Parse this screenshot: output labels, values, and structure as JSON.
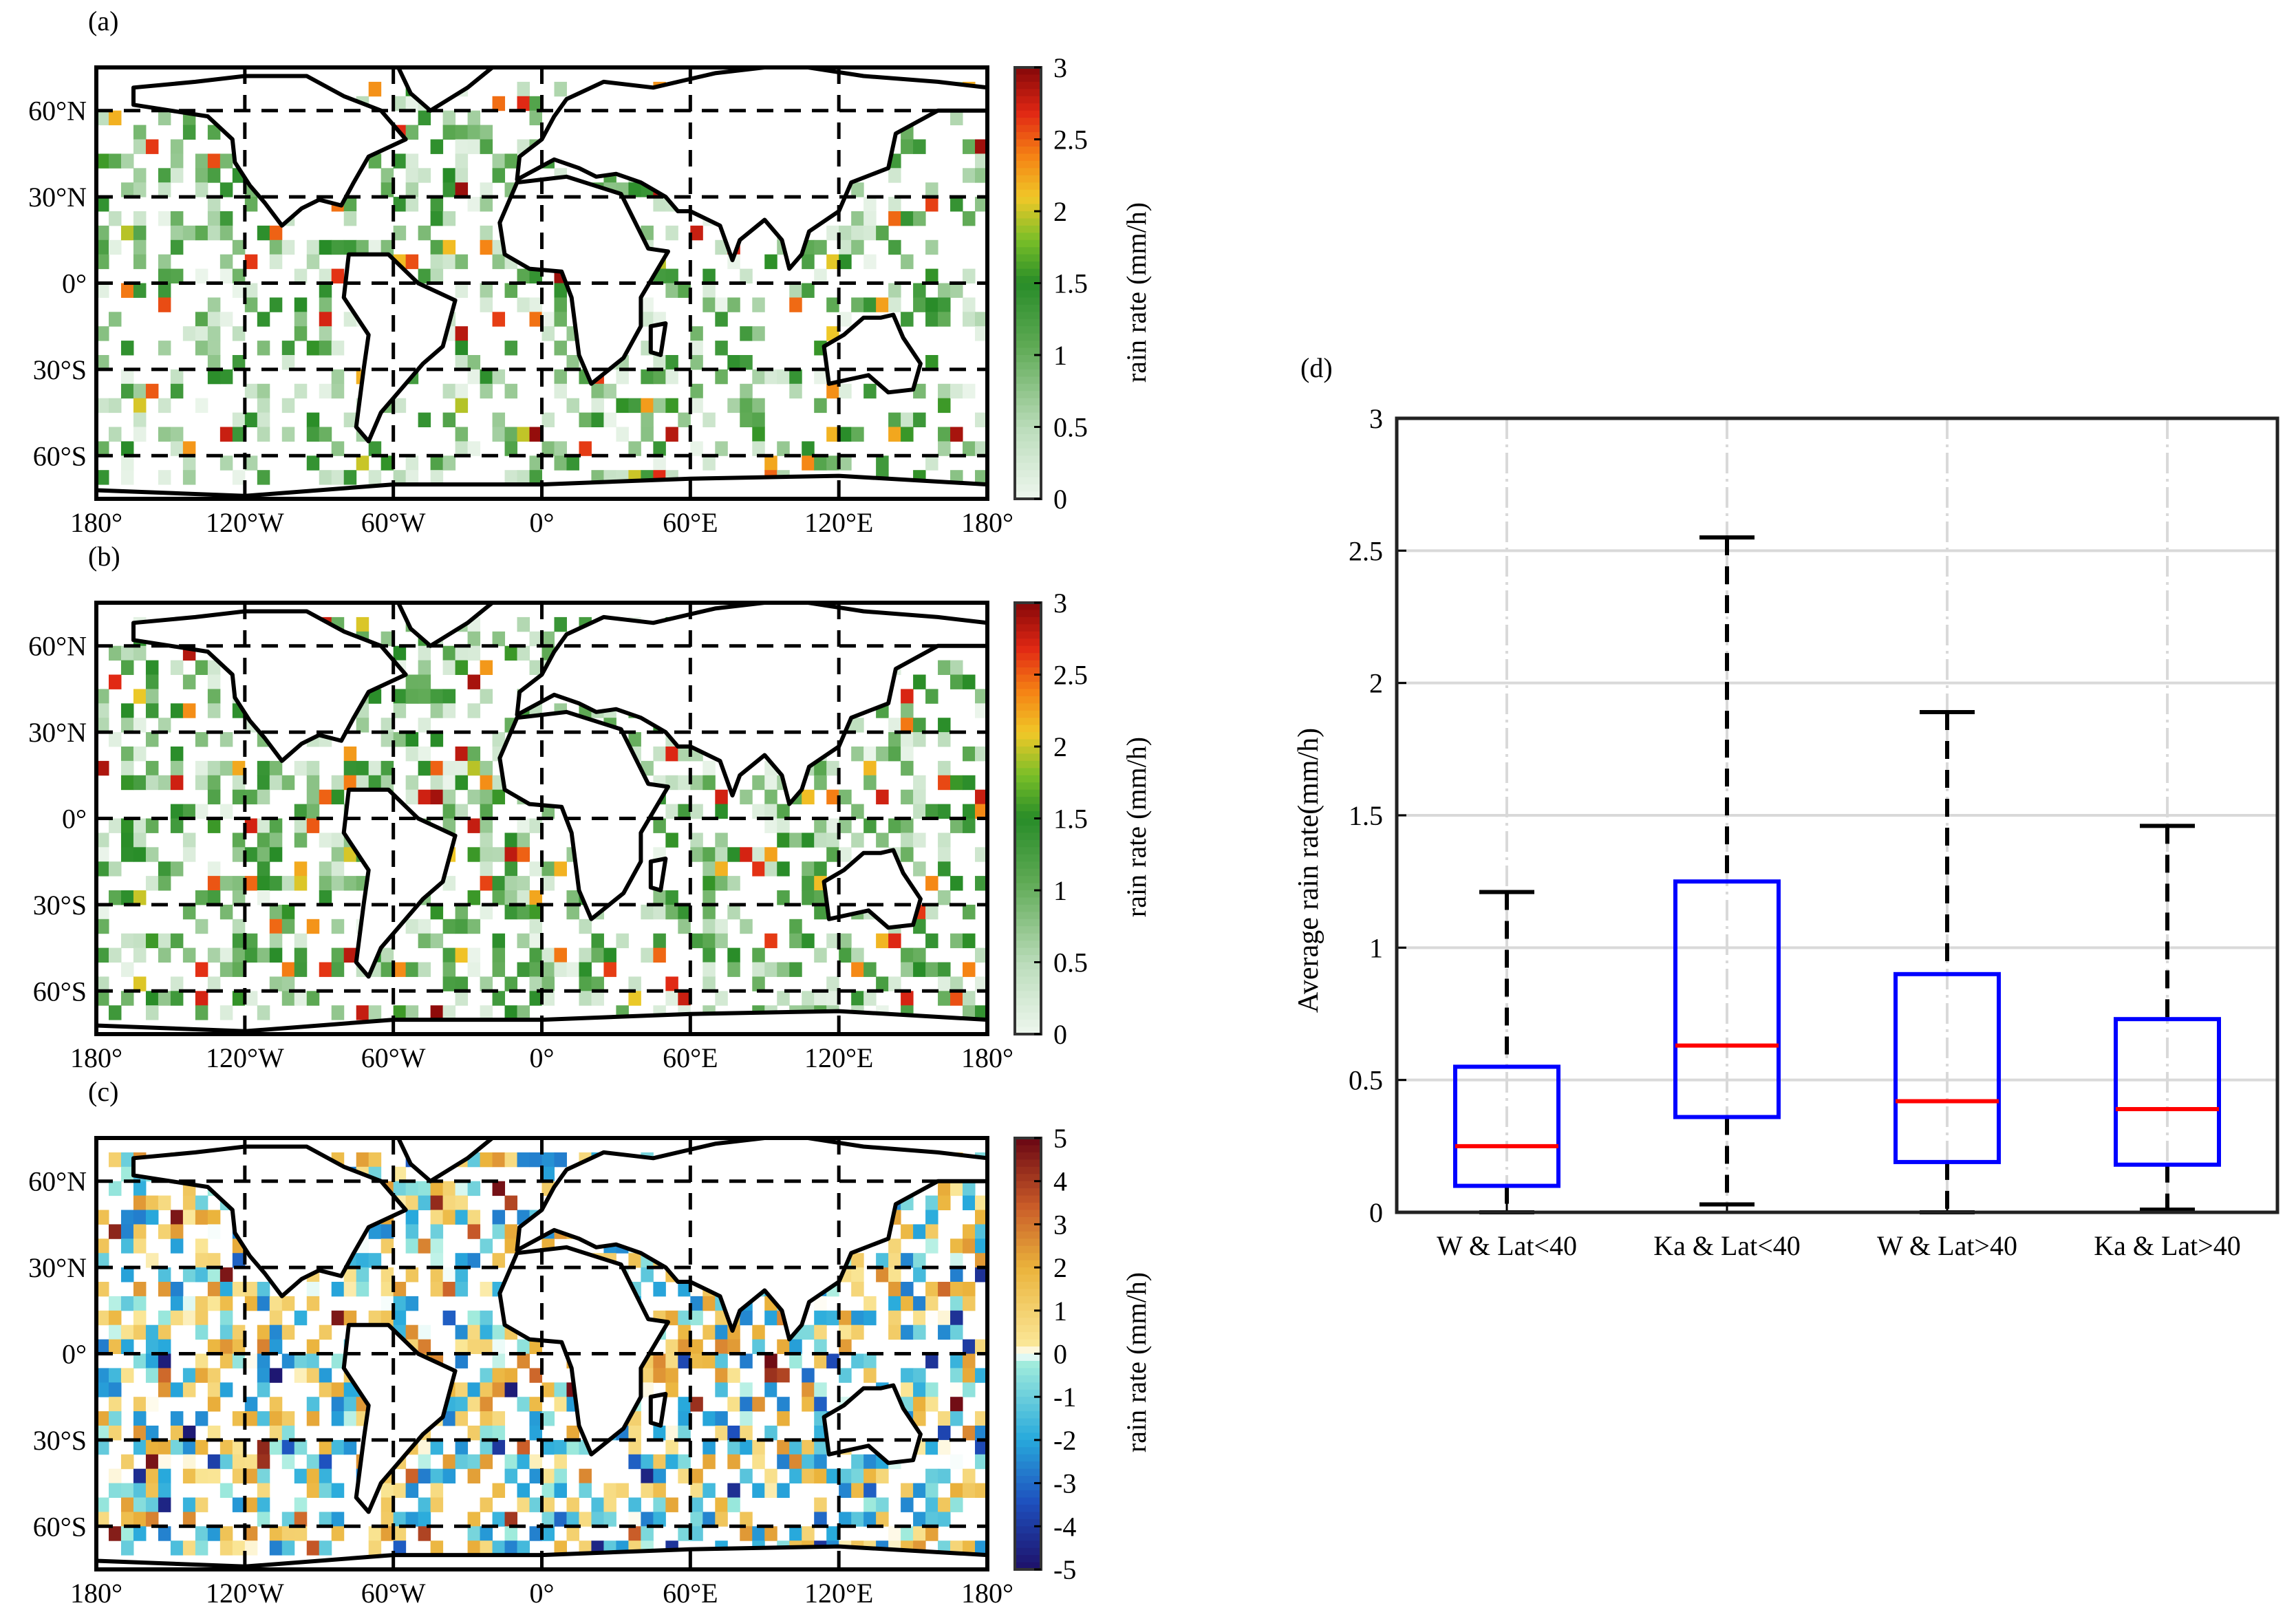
{
  "panels": {
    "a": {
      "label": "(a)",
      "colorbar": {
        "label": "rain rate (mm/h)",
        "ticks": [
          "3",
          "2.5",
          "2",
          "1.5",
          "1",
          "0.5",
          "0"
        ],
        "colormap": "green-red"
      }
    },
    "b": {
      "label": "(b)",
      "colorbar": {
        "label": "rain rate (mm/h)",
        "ticks": [
          "3",
          "2.5",
          "2",
          "1.5",
          "1",
          "0.5",
          "0"
        ],
        "colormap": "green-red"
      }
    },
    "c": {
      "label": "(c)",
      "colorbar": {
        "label": "rain rate (mm/h)",
        "ticks": [
          "5",
          "4",
          "3",
          "2",
          "1",
          "0",
          "-1",
          "-2",
          "-3",
          "-4",
          "-5"
        ],
        "colormap": "diverging"
      }
    },
    "d": {
      "label": "(d)"
    }
  },
  "map_axes": {
    "lat_ticks": [
      "60°N",
      "30°N",
      "0°",
      "30°S",
      "60°S"
    ],
    "lon_ticks": [
      "180°",
      "120°W",
      "60°W",
      "0°",
      "60°E",
      "120°E",
      "180°"
    ]
  },
  "chart_data": [
    {
      "type": "heatmap",
      "panel": "a",
      "title": "",
      "xlabel": "",
      "ylabel": "",
      "colorbar_label": "rain rate (mm/h)",
      "clim": [
        0,
        3
      ],
      "extent": {
        "lon": [
          -180,
          180
        ],
        "lat": [
          -75,
          75
        ]
      },
      "grid": "dashed 60°/30°"
    },
    {
      "type": "heatmap",
      "panel": "b",
      "title": "",
      "xlabel": "",
      "ylabel": "",
      "colorbar_label": "rain rate (mm/h)",
      "clim": [
        0,
        3
      ],
      "extent": {
        "lon": [
          -180,
          180
        ],
        "lat": [
          -75,
          75
        ]
      },
      "grid": "dashed 60°/30°"
    },
    {
      "type": "heatmap",
      "panel": "c",
      "title": "",
      "xlabel": "",
      "ylabel": "",
      "colorbar_label": "rain rate (mm/h)",
      "clim": [
        -5,
        5
      ],
      "extent": {
        "lon": [
          -180,
          180
        ],
        "lat": [
          -75,
          75
        ]
      },
      "grid": "dashed 60°/30°"
    },
    {
      "type": "box",
      "panel": "d",
      "title": "",
      "xlabel": "",
      "ylabel": "Average rain rate(mm/h)",
      "ylim": [
        0,
        3
      ],
      "yticks": [
        "0",
        "0.5",
        "1",
        "1.5",
        "2",
        "2.5",
        "3"
      ],
      "categories": [
        "W & Lat<40",
        "Ka & Lat<40",
        "W & Lat>40",
        "Ka & Lat>40"
      ],
      "boxes": [
        {
          "min": 0.0,
          "q1": 0.1,
          "median": 0.25,
          "q3": 0.55,
          "max": 1.21
        },
        {
          "min": 0.03,
          "q1": 0.36,
          "median": 0.63,
          "q3": 1.25,
          "max": 2.55
        },
        {
          "min": 0.0,
          "q1": 0.19,
          "median": 0.42,
          "q3": 0.9,
          "max": 1.89
        },
        {
          "min": 0.01,
          "q1": 0.18,
          "median": 0.39,
          "q3": 0.73,
          "max": 1.46
        }
      ],
      "colors": {
        "box": "#0000ff",
        "median": "#ff0000",
        "whisker": "#000000"
      }
    }
  ]
}
